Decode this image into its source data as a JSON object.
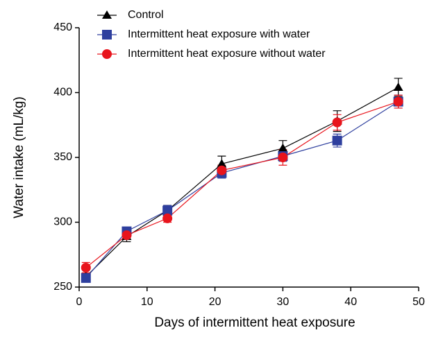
{
  "chart_data": {
    "type": "line",
    "x_label": "Days of intermittent heat exposure",
    "y_label": "Water intake (mL/kg)",
    "x": [
      1,
      7,
      13,
      21,
      30,
      38,
      47
    ],
    "series": [
      {
        "name": "Control",
        "color": "#000000",
        "marker": "triangle",
        "values": [
          258,
          289,
          309,
          345,
          357,
          378,
          404
        ],
        "errors": [
          3,
          4,
          4,
          6,
          6,
          8,
          7
        ]
      },
      {
        "name": "Intermittent heat exposure with water",
        "color": "#2e3f9e",
        "marker": "square",
        "values": [
          257,
          293,
          309,
          338,
          351,
          363,
          393
        ],
        "errors": [
          3,
          3,
          4,
          4,
          4,
          5,
          5
        ]
      },
      {
        "name": "Intermittent heat exposure without water",
        "color": "#e8141c",
        "marker": "circle",
        "values": [
          265,
          290,
          303,
          340,
          350,
          377,
          393
        ],
        "errors": [
          4,
          3,
          3,
          4,
          6,
          6,
          5
        ]
      }
    ],
    "xlim": [
      0,
      50
    ],
    "xticks": [
      0,
      10,
      20,
      30,
      40,
      50
    ],
    "ylim": [
      250,
      450
    ],
    "yticks": [
      250,
      300,
      350,
      400,
      450
    ],
    "grid": false,
    "legend": "top-left"
  }
}
